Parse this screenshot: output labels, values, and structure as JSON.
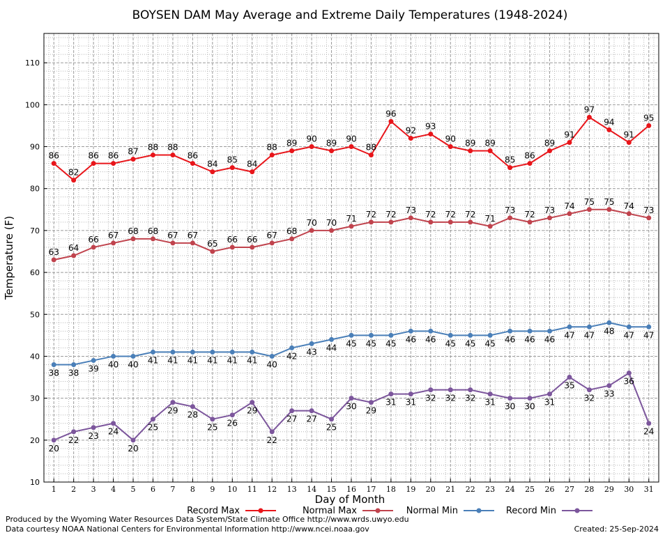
{
  "chart_data": {
    "type": "line",
    "title": "BOYSEN DAM May Average and Extreme Daily Temperatures (1948-2024)",
    "xlabel": "Day of Month",
    "ylabel": "Temperature (F)",
    "xlim": [
      0.5,
      31.5
    ],
    "ylim": [
      10,
      117
    ],
    "yticks": [
      10,
      20,
      30,
      40,
      50,
      60,
      70,
      80,
      90,
      100,
      110
    ],
    "x": [
      1,
      2,
      3,
      4,
      5,
      6,
      7,
      8,
      9,
      10,
      11,
      12,
      13,
      14,
      15,
      16,
      17,
      18,
      19,
      20,
      21,
      22,
      23,
      24,
      25,
      26,
      27,
      28,
      29,
      30,
      31
    ],
    "grid": true,
    "legend_position": "bottom",
    "series": [
      {
        "name": "Record Max",
        "color": "#e8151a",
        "label_pos": "above",
        "values": [
          86,
          82,
          86,
          86,
          87,
          88,
          88,
          86,
          84,
          85,
          84,
          88,
          89,
          90,
          89,
          90,
          88,
          96,
          92,
          93,
          90,
          89,
          89,
          85,
          86,
          89,
          91,
          97,
          94,
          91,
          95
        ]
      },
      {
        "name": "Normal Max",
        "color": "#c0434d",
        "label_pos": "above",
        "values": [
          63,
          64,
          66,
          67,
          68,
          68,
          67,
          67,
          65,
          66,
          66,
          67,
          68,
          70,
          70,
          71,
          72,
          72,
          73,
          72,
          72,
          72,
          71,
          73,
          72,
          73,
          74,
          75,
          75,
          74,
          73
        ]
      },
      {
        "name": "Normal Min",
        "color": "#4a7fb8",
        "label_pos": "below",
        "values": [
          38,
          38,
          39,
          40,
          40,
          41,
          41,
          41,
          41,
          41,
          41,
          40,
          42,
          43,
          44,
          45,
          45,
          45,
          46,
          46,
          45,
          45,
          45,
          46,
          46,
          46,
          47,
          47,
          48,
          47,
          47
        ]
      },
      {
        "name": "Record Min",
        "color": "#7c569c",
        "label_pos": "below",
        "values": [
          20,
          22,
          23,
          24,
          20,
          25,
          29,
          28,
          25,
          26,
          29,
          22,
          27,
          27,
          25,
          30,
          29,
          31,
          31,
          32,
          32,
          32,
          31,
          30,
          30,
          31,
          35,
          32,
          33,
          36,
          24
        ]
      }
    ]
  },
  "footer": {
    "line1": "Produced by the Wyoming Water Resources Data System/State Climate Office http://www.wrds.uwyo.edu",
    "line2": "Data courtesy NOAA National Centers for Environmental Information http://www.ncei.noaa.gov",
    "created": "Created:  25-Sep-2024"
  }
}
